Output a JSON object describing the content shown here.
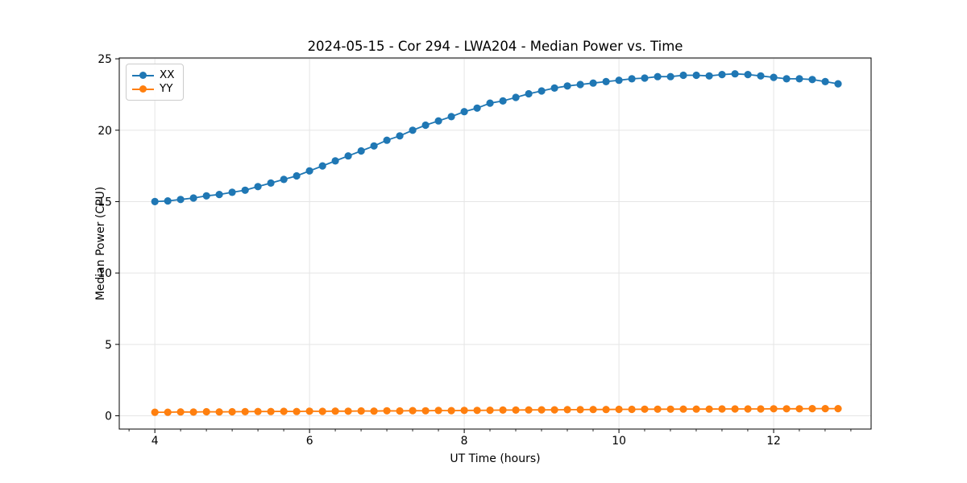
{
  "chart_data": {
    "type": "line",
    "title": "2024-05-15 - Cor 294 - LWA204 - Median Power vs. Time",
    "xlabel": "UT Time (hours)",
    "ylabel": "Median Power (CPU)",
    "xlim": [
      3.54,
      13.26
    ],
    "ylim": [
      -0.93,
      25.06
    ],
    "xticks": [
      4,
      6,
      8,
      10,
      12
    ],
    "yticks": [
      0,
      5,
      10,
      15,
      20,
      25
    ],
    "x_minor_step": 0.3333,
    "grid": true,
    "grid_color": "#e5e5e5",
    "legend_position": "upper left",
    "x": [
      4.0,
      4.167,
      4.333,
      4.5,
      4.667,
      4.833,
      5.0,
      5.167,
      5.333,
      5.5,
      5.667,
      5.833,
      6.0,
      6.167,
      6.333,
      6.5,
      6.667,
      6.833,
      7.0,
      7.167,
      7.333,
      7.5,
      7.667,
      7.833,
      8.0,
      8.167,
      8.333,
      8.5,
      8.667,
      8.833,
      9.0,
      9.167,
      9.333,
      9.5,
      9.667,
      9.833,
      10.0,
      10.167,
      10.333,
      10.5,
      10.667,
      10.833,
      11.0,
      11.167,
      11.333,
      11.5,
      11.667,
      11.833,
      12.0,
      12.167,
      12.333,
      12.5,
      12.667,
      12.833
    ],
    "series": [
      {
        "name": "XX",
        "color": "#1f77b4",
        "values": [
          15.0,
          15.05,
          15.15,
          15.25,
          15.4,
          15.5,
          15.65,
          15.8,
          16.05,
          16.3,
          16.55,
          16.8,
          17.15,
          17.5,
          17.85,
          18.2,
          18.55,
          18.9,
          19.3,
          19.6,
          20.0,
          20.35,
          20.65,
          20.95,
          21.3,
          21.55,
          21.9,
          22.05,
          22.3,
          22.55,
          22.75,
          22.95,
          23.1,
          23.2,
          23.3,
          23.4,
          23.5,
          23.6,
          23.65,
          23.75,
          23.75,
          23.85,
          23.85,
          23.8,
          23.9,
          23.95,
          23.9,
          23.8,
          23.7,
          23.6,
          23.6,
          23.55,
          23.4,
          23.25
        ]
      },
      {
        "name": "YY",
        "color": "#ff7f0e",
        "values": [
          0.25,
          0.25,
          0.27,
          0.26,
          0.28,
          0.27,
          0.28,
          0.29,
          0.3,
          0.3,
          0.31,
          0.3,
          0.32,
          0.31,
          0.33,
          0.32,
          0.34,
          0.33,
          0.35,
          0.34,
          0.36,
          0.35,
          0.37,
          0.36,
          0.38,
          0.38,
          0.39,
          0.4,
          0.4,
          0.41,
          0.42,
          0.42,
          0.43,
          0.43,
          0.44,
          0.44,
          0.45,
          0.45,
          0.46,
          0.46,
          0.46,
          0.47,
          0.47,
          0.47,
          0.48,
          0.48,
          0.48,
          0.48,
          0.49,
          0.49,
          0.49,
          0.5,
          0.5,
          0.5
        ]
      }
    ]
  }
}
